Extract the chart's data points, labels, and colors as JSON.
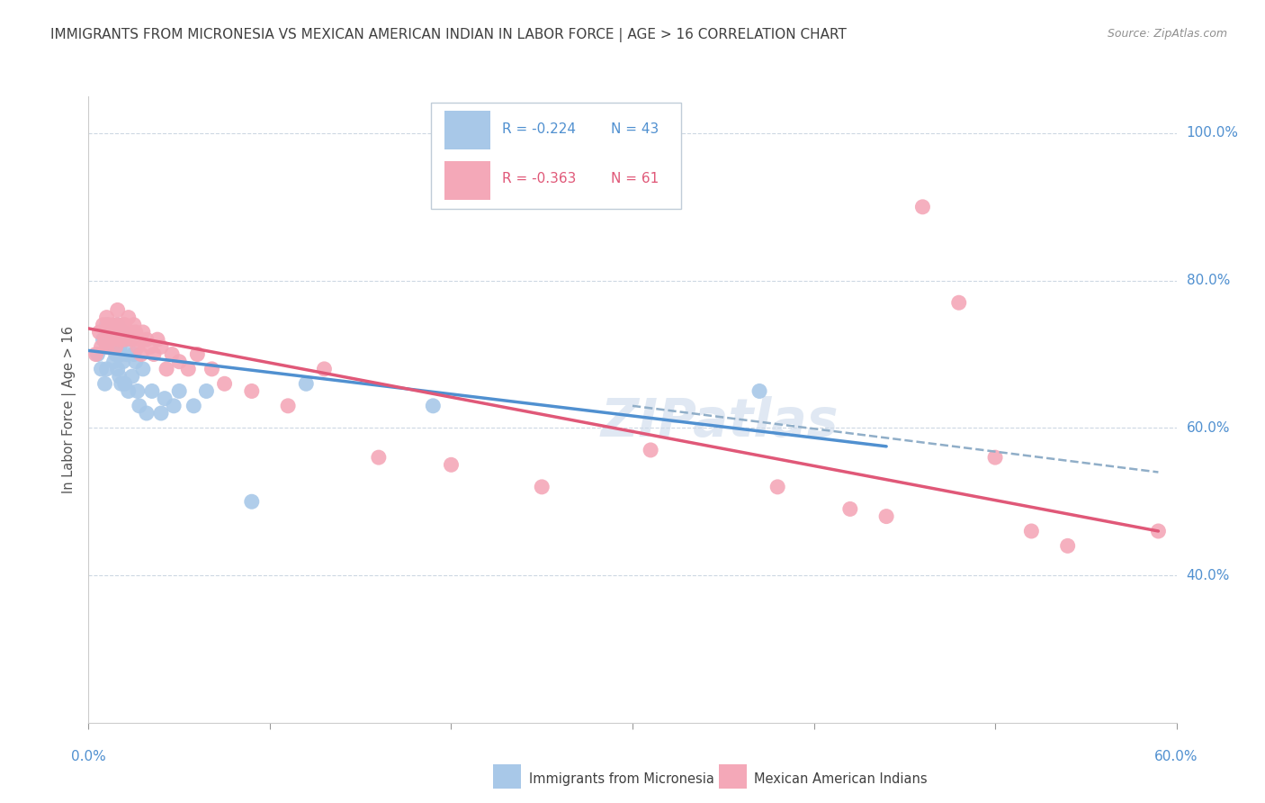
{
  "title": "IMMIGRANTS FROM MICRONESIA VS MEXICAN AMERICAN INDIAN IN LABOR FORCE | AGE > 16 CORRELATION CHART",
  "source": "Source: ZipAtlas.com",
  "ylabel": "In Labor Force | Age > 16",
  "xlim": [
    0.0,
    0.6
  ],
  "ylim": [
    0.2,
    1.05
  ],
  "yticks": [
    0.4,
    0.6,
    0.8,
    1.0
  ],
  "ytick_labels": [
    "40.0%",
    "60.0%",
    "80.0%",
    "100.0%"
  ],
  "xtick_labels_show": [
    "0.0%",
    "60.0%"
  ],
  "watermark": "ZIPatlas",
  "legend_r1": "R = -0.224",
  "legend_n1": "N = 43",
  "legend_r2": "R = -0.363",
  "legend_n2": "N = 61",
  "color_blue": "#a8c8e8",
  "color_pink": "#f4a8b8",
  "line_color_blue": "#5090d0",
  "line_color_pink": "#e05878",
  "line_color_dashed": "#90aec8",
  "background_color": "#ffffff",
  "grid_color": "#c8d4e0",
  "title_color": "#404040",
  "source_color": "#909090",
  "axis_label_color": "#5090d0",
  "blue_scatter_x": [
    0.005,
    0.007,
    0.008,
    0.009,
    0.01,
    0.01,
    0.01,
    0.012,
    0.013,
    0.014,
    0.015,
    0.015,
    0.016,
    0.016,
    0.017,
    0.017,
    0.018,
    0.018,
    0.019,
    0.019,
    0.02,
    0.02,
    0.021,
    0.022,
    0.023,
    0.024,
    0.025,
    0.026,
    0.027,
    0.028,
    0.03,
    0.032,
    0.035,
    0.04,
    0.042,
    0.047,
    0.05,
    0.058,
    0.065,
    0.09,
    0.12,
    0.19,
    0.37
  ],
  "blue_scatter_y": [
    0.7,
    0.68,
    0.72,
    0.66,
    0.74,
    0.71,
    0.68,
    0.73,
    0.71,
    0.69,
    0.72,
    0.7,
    0.74,
    0.68,
    0.71,
    0.67,
    0.7,
    0.66,
    0.73,
    0.69,
    0.72,
    0.66,
    0.7,
    0.65,
    0.72,
    0.67,
    0.7,
    0.69,
    0.65,
    0.63,
    0.68,
    0.62,
    0.65,
    0.62,
    0.64,
    0.63,
    0.65,
    0.63,
    0.65,
    0.5,
    0.66,
    0.63,
    0.65
  ],
  "pink_scatter_x": [
    0.004,
    0.006,
    0.007,
    0.008,
    0.009,
    0.01,
    0.01,
    0.011,
    0.012,
    0.013,
    0.014,
    0.015,
    0.015,
    0.016,
    0.016,
    0.017,
    0.017,
    0.018,
    0.018,
    0.019,
    0.019,
    0.02,
    0.02,
    0.021,
    0.022,
    0.023,
    0.024,
    0.025,
    0.026,
    0.027,
    0.028,
    0.029,
    0.03,
    0.032,
    0.034,
    0.036,
    0.038,
    0.04,
    0.043,
    0.046,
    0.05,
    0.055,
    0.06,
    0.068,
    0.075,
    0.09,
    0.11,
    0.13,
    0.16,
    0.2,
    0.25,
    0.31,
    0.38,
    0.42,
    0.44,
    0.46,
    0.48,
    0.5,
    0.52,
    0.54,
    0.59
  ],
  "pink_scatter_y": [
    0.7,
    0.73,
    0.71,
    0.74,
    0.72,
    0.75,
    0.71,
    0.74,
    0.73,
    0.72,
    0.74,
    0.73,
    0.71,
    0.76,
    0.74,
    0.73,
    0.72,
    0.73,
    0.72,
    0.74,
    0.73,
    0.74,
    0.72,
    0.73,
    0.75,
    0.73,
    0.72,
    0.74,
    0.73,
    0.71,
    0.72,
    0.7,
    0.73,
    0.72,
    0.71,
    0.7,
    0.72,
    0.71,
    0.68,
    0.7,
    0.69,
    0.68,
    0.7,
    0.68,
    0.66,
    0.65,
    0.63,
    0.68,
    0.56,
    0.55,
    0.52,
    0.57,
    0.52,
    0.49,
    0.48,
    0.9,
    0.77,
    0.56,
    0.46,
    0.44,
    0.46
  ],
  "blue_line_x": [
    0.0,
    0.44
  ],
  "blue_line_y": [
    0.705,
    0.575
  ],
  "pink_line_x": [
    0.0,
    0.59
  ],
  "pink_line_y": [
    0.735,
    0.46
  ],
  "dashed_line_x": [
    0.3,
    0.59
  ],
  "dashed_line_y": [
    0.63,
    0.54
  ]
}
